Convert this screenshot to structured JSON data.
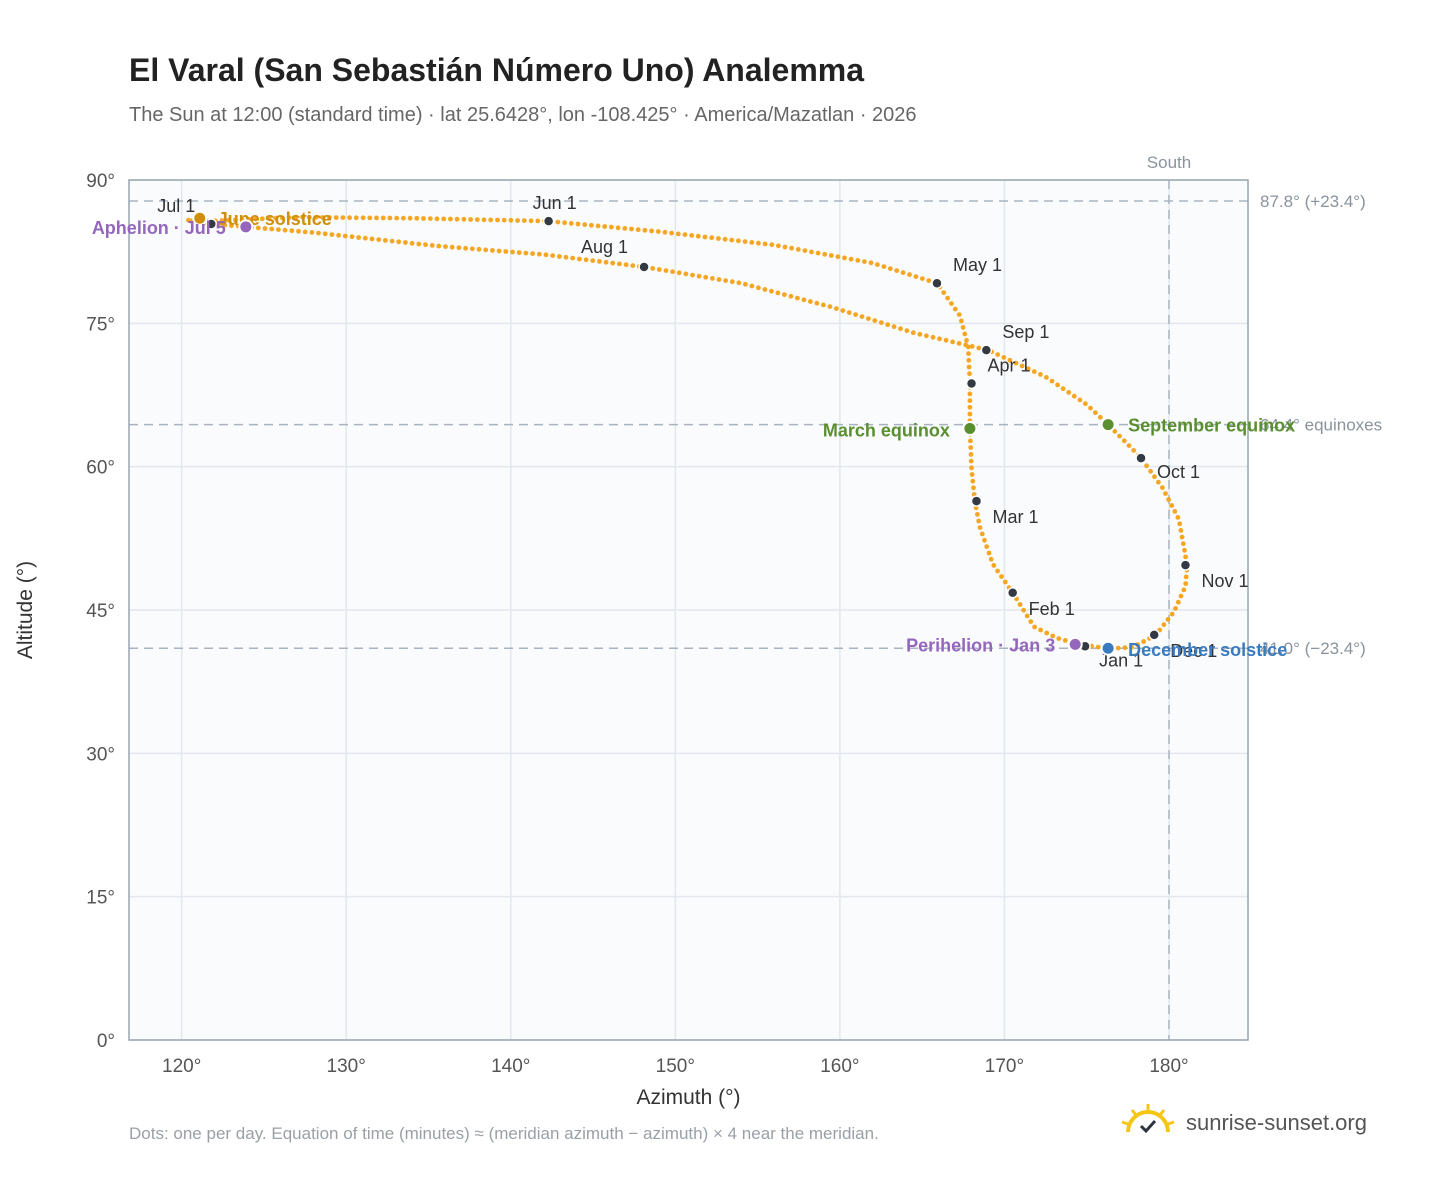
{
  "header": {
    "title": "El Varal (San Sebastián Número Uno) Analemma",
    "subtitle": "The Sun at 12:00 (standard time) · lat 25.6428°, lon -108.425° · America/Mazatlan · 2026"
  },
  "footer": {
    "note": "Dots: one per day. Equation of time (minutes) ≈ (meridian azimuth − azimuth) × 4 near the meridian.",
    "brand": "sunrise-sunset.org",
    "brand_icon": "sun-icon"
  },
  "colors": {
    "curve": "#f5a623",
    "month_dot": "#333a44",
    "solstice_june": "#d08f0a",
    "solstice_december": "#3a7abf",
    "equinox": "#5a8f2f",
    "apsis": "#9467bd",
    "grid": "#e3e8ee",
    "reference_line": "#aab4c0",
    "plot_bg": "#f9fbfd"
  },
  "chart_data": {
    "type": "scatter",
    "title": "El Varal (San Sebastián Número Uno) Analemma",
    "xlabel": "Azimuth (°)",
    "ylabel": "Altitude (°)",
    "xlim": [
      116.8,
      184.8
    ],
    "ylim": [
      0,
      90
    ],
    "x_ticks": [
      120,
      130,
      140,
      150,
      160,
      170,
      180
    ],
    "x_tick_labels": [
      "120°",
      "130°",
      "140°",
      "150°",
      "160°",
      "170°",
      "180°"
    ],
    "y_ticks": [
      0,
      15,
      30,
      45,
      60,
      75,
      90
    ],
    "y_tick_labels": [
      "0°",
      "15°",
      "30°",
      "45°",
      "60°",
      "75°",
      "90°"
    ],
    "grid": true,
    "meridian": {
      "azimuth": 180,
      "label": "South"
    },
    "reference_lines": [
      {
        "altitude": 87.8,
        "label": "87.8° (+23.4°)"
      },
      {
        "altitude": 64.4,
        "label": "64.4° equinoxes"
      },
      {
        "altitude": 41.0,
        "label": "41.0° (−23.4°)"
      }
    ],
    "series": [
      {
        "points": [
          [
            176.1,
            41.03
          ],
          [
            174.7,
            41.35
          ],
          [
            173.2,
            42.05
          ],
          [
            171.8,
            43.25
          ],
          [
            170.5,
            46.8
          ],
          [
            169.3,
            49.8
          ],
          [
            168.5,
            53.7
          ],
          [
            168.2,
            56.4
          ],
          [
            168.0,
            59.8
          ],
          [
            167.9,
            64.0
          ],
          [
            167.9,
            68.7
          ],
          [
            167.8,
            72.5
          ],
          [
            167.3,
            75.8
          ],
          [
            165.9,
            79.2
          ],
          [
            162.0,
            81.3
          ],
          [
            156.0,
            83.2
          ],
          [
            149.0,
            84.6
          ],
          [
            142.2,
            85.7
          ],
          [
            134.0,
            86.0
          ],
          [
            127.0,
            86.1
          ],
          [
            121.6,
            85.7
          ],
          [
            120.3,
            85.8
          ],
          [
            121.8,
            85.4
          ],
          [
            128.0,
            84.5
          ],
          [
            135.5,
            83.1
          ],
          [
            142.0,
            82.2
          ],
          [
            148.1,
            80.9
          ],
          [
            154.0,
            79.2
          ],
          [
            159.5,
            76.7
          ],
          [
            164.5,
            74.0
          ],
          [
            169.0,
            72.2
          ],
          [
            172.5,
            69.4
          ],
          [
            175.0,
            66.5
          ],
          [
            176.3,
            64.4
          ],
          [
            177.4,
            62.5
          ],
          [
            178.3,
            60.9
          ],
          [
            179.6,
            57.8
          ],
          [
            180.6,
            54.5
          ],
          [
            181.1,
            49.7
          ],
          [
            181.0,
            47.5
          ],
          [
            180.3,
            44.8
          ],
          [
            179.2,
            42.4
          ],
          [
            177.8,
            41.1
          ],
          [
            176.3,
            40.95
          ]
        ]
      }
    ],
    "month_markers": [
      {
        "label": "Jan 1",
        "az": 174.9,
        "alt": 41.2
      },
      {
        "label": "Feb 1",
        "az": 170.5,
        "alt": 46.8
      },
      {
        "label": "Mar 1",
        "az": 168.3,
        "alt": 56.4
      },
      {
        "label": "Apr 1",
        "az": 168.0,
        "alt": 68.7
      },
      {
        "label": "May 1",
        "az": 165.9,
        "alt": 79.2
      },
      {
        "label": "Jun 1",
        "az": 142.3,
        "alt": 85.7
      },
      {
        "label": "Jul 1",
        "az": 121.8,
        "alt": 85.4
      },
      {
        "label": "Aug 1",
        "az": 148.1,
        "alt": 80.9
      },
      {
        "label": "Sep 1",
        "az": 168.9,
        "alt": 72.2
      },
      {
        "label": "Oct 1",
        "az": 178.3,
        "alt": 60.9
      },
      {
        "label": "Nov 1",
        "az": 181.0,
        "alt": 49.7
      },
      {
        "label": "Dec 1",
        "az": 179.1,
        "alt": 42.4
      }
    ],
    "events": [
      {
        "label": "June solstice",
        "az": 121.1,
        "alt": 86.0,
        "kind": "solstice_june"
      },
      {
        "label": "December solstice",
        "az": 176.3,
        "alt": 41.0,
        "kind": "solstice_december"
      },
      {
        "label": "March equinox",
        "az": 167.9,
        "alt": 64.0,
        "kind": "equinox"
      },
      {
        "label": "September equinox",
        "az": 176.3,
        "alt": 64.4,
        "kind": "equinox"
      },
      {
        "label": "Aphelion · Jul 5",
        "az": 123.9,
        "alt": 85.1,
        "kind": "apsis"
      },
      {
        "label": "Perihelion · Jan 3",
        "az": 174.3,
        "alt": 41.4,
        "kind": "apsis"
      }
    ]
  }
}
